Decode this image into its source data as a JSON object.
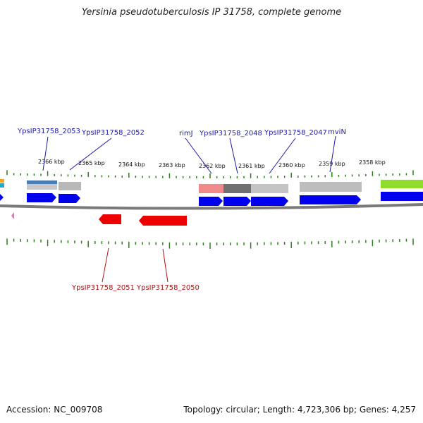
{
  "title": "Yersinia pseudotuberculosis IP 31758, complete genome",
  "footer": {
    "accession": "Accession: NC_009708",
    "topology": "Topology: circular; Length: 4,723,306 bp; Genes: 4,257"
  },
  "kbp_ticks": [
    "2366 kbp",
    "2365 kbp",
    "2364 kbp",
    "2363 kbp",
    "2362 kbp",
    "2361 kbp",
    "2360 kbp",
    "2359 kbp",
    "2358 kbp"
  ],
  "genes_top": [
    "YpsIP31758_2053",
    "YpsIP31758_2052",
    "rimJ",
    "YpsIP31758_2048",
    "YpsIP31758_2047",
    "mviN"
  ],
  "genes_bottom": [
    "YpsIP31758_2051",
    "YpsIP31758_2050"
  ],
  "colors": {
    "forward_gene": "#0000ee",
    "reverse_gene": "#ee0000",
    "top_label": "#1a1aa6",
    "bottom_label": "#b01010",
    "backbone": "#7a7a7a",
    "tick": "#2e7d1e"
  }
}
